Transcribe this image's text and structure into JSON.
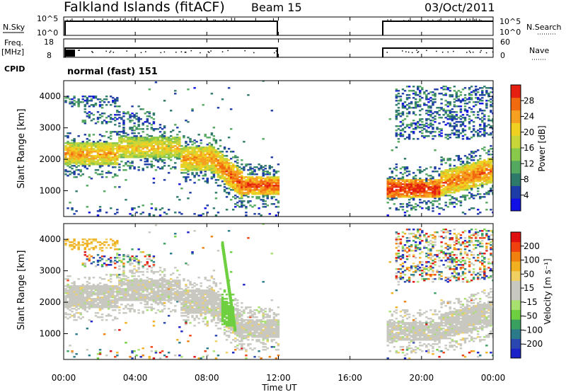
{
  "header": {
    "station": "Falkland Islands (fitACF)",
    "beam": "Beam 15",
    "date": "03/Oct/2011"
  },
  "mode_label": "normal (fast) 151",
  "xaxis": {
    "label": "Time UT",
    "ticks": [
      "00:00",
      "04:00",
      "08:00",
      "12:00",
      "16:00",
      "20:00",
      "00:00"
    ],
    "tick_hours": [
      0,
      4,
      8,
      12,
      16,
      20,
      24
    ]
  },
  "nsky_strip": {
    "left_label": "N.Sky",
    "right_label": "N.Search",
    "left_ticks": [
      "10^5",
      "10^0"
    ],
    "right_ticks": [
      "10^5",
      "10^0"
    ]
  },
  "freq_strip": {
    "left_label_1": "Freq.",
    "left_label_2": "[MHz]",
    "left_ticks": [
      "18",
      "8"
    ],
    "right_label": "Nave",
    "right_ticks": [
      "60",
      "0"
    ],
    "cpid_label": "CPID"
  },
  "power_panel": {
    "ylabel": "Slant Range [km]",
    "yticks": [
      1000,
      2000,
      3000,
      4000
    ],
    "colorbar_label": "Power [dB]",
    "colorbar_ticks": [
      "4",
      "8",
      "12",
      "16",
      "20",
      "24",
      "28"
    ],
    "colorbar_colors": [
      "#1010e6",
      "#1e3ca8",
      "#2e7a6a",
      "#55a860",
      "#88c84a",
      "#c8d63a",
      "#f0d020",
      "#f5a020",
      "#f26a10",
      "#e62010"
    ]
  },
  "velocity_panel": {
    "ylabel": "Slant Range [km]",
    "yticks": [
      1000,
      2000,
      3000,
      4000
    ],
    "colorbar_label": "Velocity [m s⁻¹]",
    "colorbar_ticks": [
      "200",
      "100",
      "50",
      "15",
      "-15",
      "-50",
      "-100",
      "-200"
    ],
    "colorbar_colors": [
      "#1a22c8",
      "#2a46b0",
      "#2a7a8a",
      "#3aa060",
      "#6ed040",
      "#a8e070",
      "#c8c8c0",
      "#c8c8c0",
      "#f0d060",
      "#f0b020",
      "#f08010",
      "#f04010",
      "#e01010"
    ]
  },
  "chart_data": {
    "type": "heatmap",
    "title": "Falkland Islands (fitACF) Beam 15 03/Oct/2011",
    "xlabel": "Time UT",
    "ylabel": "Slant Range [km]",
    "xlim_hours": [
      0,
      24
    ],
    "ylim_km": [
      180,
      4500
    ],
    "data_gap_hours": [
      12,
      18
    ],
    "power_bands": [
      {
        "t_start": 0.0,
        "t_end": 3.0,
        "range_center_km": 2150,
        "width_km": 350,
        "power_db": 18
      },
      {
        "t_start": 3.0,
        "t_end": 6.5,
        "range_center_km": 2350,
        "width_km": 350,
        "power_db": 16
      },
      {
        "t_start": 6.5,
        "t_end": 9.5,
        "range_center_km": 2000,
        "width_km": 400,
        "power_db": 18
      },
      {
        "t_start": 9.5,
        "t_end": 12.0,
        "range_center_km": 1150,
        "width_km": 300,
        "power_db": 22
      },
      {
        "t_start": 18.0,
        "t_end": 21.0,
        "range_center_km": 1050,
        "width_km": 300,
        "power_db": 24
      },
      {
        "t_start": 21.0,
        "t_end": 24.0,
        "range_center_km": 1500,
        "width_km": 400,
        "power_db": 20
      }
    ],
    "velocity_summary": {
      "dominant_class": "-15 to 15 m/s (ground scatter)",
      "green_streak_hours": [
        8.8,
        9.5
      ],
      "green_streak_range_km": [
        1200,
        3900
      ]
    }
  }
}
